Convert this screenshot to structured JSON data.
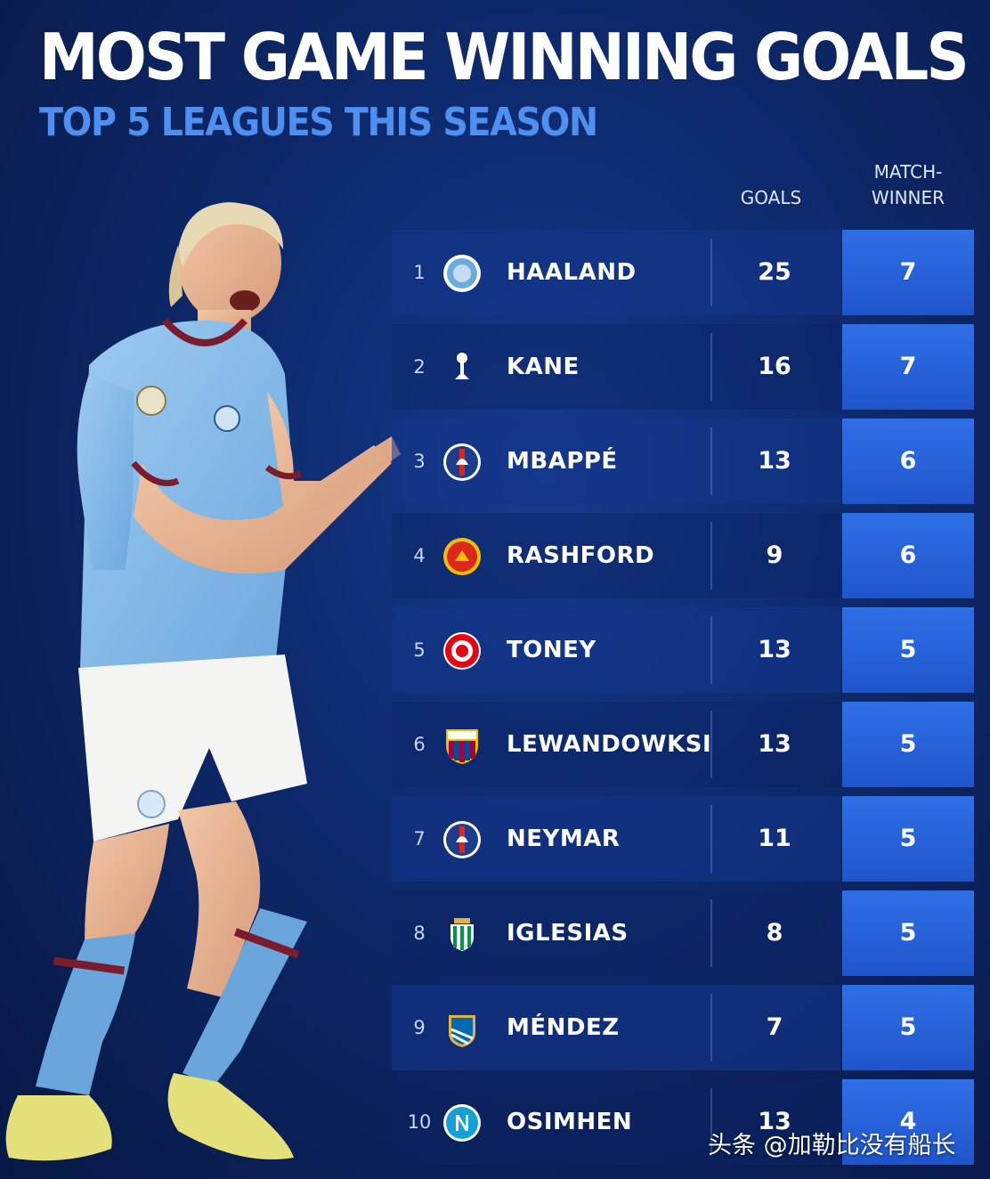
{
  "title": "MOST GAME WINNING GOALS",
  "subtitle": "TOP 5 LEAGUES THIS SEASON",
  "columns": {
    "goals": "GOALS",
    "match_winner_line1": "MATCH-",
    "match_winner_line2": "WINNER"
  },
  "rows": [
    {
      "rank": "1",
      "name": "HAALAND",
      "goals": "25",
      "match_winner": "7",
      "crest": "man-city-crest",
      "crest_color": "#6cabdd"
    },
    {
      "rank": "2",
      "name": "KANE",
      "goals": "16",
      "match_winner": "7",
      "crest": "tottenham-crest",
      "crest_color": "#ffffff"
    },
    {
      "rank": "3",
      "name": "MBAPPÉ",
      "goals": "13",
      "match_winner": "6",
      "crest": "psg-crest",
      "crest_color": "#1c3c8c"
    },
    {
      "rank": "4",
      "name": "RASHFORD",
      "goals": "9",
      "match_winner": "6",
      "crest": "man-united-crest",
      "crest_color": "#da291c"
    },
    {
      "rank": "5",
      "name": "TONEY",
      "goals": "13",
      "match_winner": "5",
      "crest": "brentford-crest",
      "crest_color": "#e30613"
    },
    {
      "rank": "6",
      "name": "LEWANDOWKSI",
      "goals": "13",
      "match_winner": "5",
      "crest": "barcelona-crest",
      "crest_color": "#a50044"
    },
    {
      "rank": "7",
      "name": "NEYMAR",
      "goals": "11",
      "match_winner": "5",
      "crest": "psg-crest",
      "crest_color": "#1c3c8c"
    },
    {
      "rank": "8",
      "name": "IGLESIAS",
      "goals": "8",
      "match_winner": "5",
      "crest": "real-betis-crest",
      "crest_color": "#00954c"
    },
    {
      "rank": "9",
      "name": "MÉNDEZ",
      "goals": "7",
      "match_winner": "5",
      "crest": "real-sociedad-crest",
      "crest_color": "#0067b1"
    },
    {
      "rank": "10",
      "name": "OSIMHEN",
      "goals": "13",
      "match_winner": "4",
      "crest": "napoli-crest",
      "crest_color": "#12a0d7"
    }
  ],
  "watermark": "头条 @加勒比没有船长"
}
